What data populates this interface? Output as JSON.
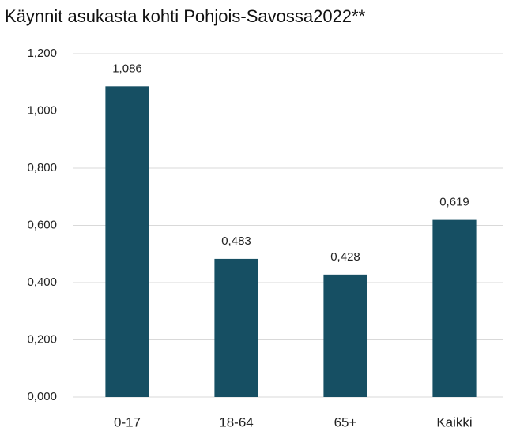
{
  "chart_data": {
    "type": "bar",
    "title": "Käynnit asukasta kohti Pohjois-Savossa2022**",
    "categories": [
      "0-17",
      "18-64",
      "65+",
      "Kaikki"
    ],
    "values": [
      1.086,
      0.483,
      0.428,
      0.619
    ],
    "value_labels": [
      "1,086",
      "0,483",
      "0,428",
      "0,619"
    ],
    "color": "#164f63",
    "ylim": [
      0,
      1.2
    ],
    "yticks": [
      {
        "value": 0,
        "label": "0,000"
      },
      {
        "value": 0.2,
        "label": "0,200"
      },
      {
        "value": 0.4,
        "label": "0,400"
      },
      {
        "value": 0.6,
        "label": "0,600"
      },
      {
        "value": 0.8,
        "label": "0,800"
      },
      {
        "value": 1.0,
        "label": "1,000"
      },
      {
        "value": 1.2,
        "label": "1,200"
      }
    ],
    "grid": true
  }
}
